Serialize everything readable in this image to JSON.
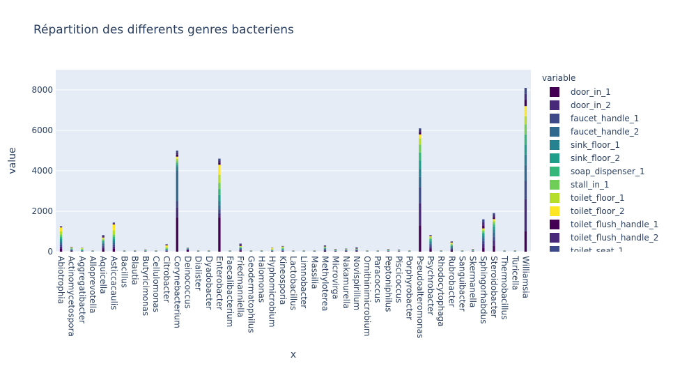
{
  "title": "Répartition des differents genres bacteriens",
  "legend_title": "variable",
  "chart_data": {
    "type": "bar",
    "barmode": "stack",
    "title": "Répartition des differents genres bacteriens",
    "xlabel": "x",
    "ylabel": "value",
    "ylim": [
      0,
      9000
    ],
    "yticks": [
      0,
      2000,
      4000,
      6000,
      8000
    ],
    "ytick_labels": [
      "0",
      "2000",
      "4000",
      "6000",
      "8000"
    ],
    "grid": true,
    "legend_position": "right",
    "x_tick_labels": [
      "Abiotrophia",
      "Actinomycetospora",
      "Aggregatibacter",
      "Alloprevotella",
      "Aquicella",
      "Asticcacaulis",
      "Bacillus",
      "Blautia",
      "Butyricimonas",
      "Cellulomonas",
      "Citrobacter",
      "Corynebacterium",
      "Deinococcus",
      "Dialister",
      "Dyadobacter",
      "Enterobacter",
      "Faecalibacterium",
      "Friedmanniella",
      "Geodermatophilus",
      "Halomonas",
      "Hyphomicrobium",
      "Kineosporia",
      "Lactobacillus",
      "Limnobacter",
      "Massilia",
      "Methyloterea",
      "Microvirga",
      "Nakamurella",
      "Novispirillum",
      "Ornithinimicrobium",
      "Paracoccus",
      "Peptoniphilus",
      "Piscicoccus",
      "Porphyrobacter",
      "Pseudoalteromonas",
      "Psychrobacter",
      "Rhodocytophaga",
      "Rubrobacter",
      "Sanguibacter",
      "Skermanella",
      "Sphingorhabdus",
      "Steroidobacter",
      "Thermobacillus",
      "Turicella",
      "Williamsia"
    ],
    "categories": [
      "Abiotrophia",
      "Actinomycetospora",
      "Aggregatibacter",
      "Alloprevotella",
      "Aquicella",
      "Asticcacaulis",
      "Bacillus",
      "Blautia",
      "Butyricimonas",
      "Cellulomonas",
      "Citrobacter",
      "Corynebacterium",
      "Deinococcus",
      "Dialister",
      "Dyadobacter",
      "Enterobacter",
      "Faecalibacterium",
      "Friedmanniella",
      "Geodermatophilus",
      "Halomonas",
      "Hyphomicrobium",
      "Kineosporia",
      "Lactobacillus",
      "Limnobacter",
      "Massilia",
      "Methyloterea",
      "Microvirga",
      "Nakamurella",
      "Novispirillum",
      "Ornithinimicrobium",
      "Paracoccus",
      "Peptoniphilus",
      "Piscicoccus",
      "Porphyrobacter",
      "Pseudoalteromonas",
      "Psychrobacter",
      "Rhodocytophaga",
      "Rubrobacter",
      "Sanguibacter",
      "Skermanella",
      "Sphingorhabdus",
      "Steroidobacter",
      "Thermobacillus",
      "Turicella",
      "Williamsia"
    ],
    "legend": [
      {
        "name": "door_in_1",
        "color": "#440154"
      },
      {
        "name": "door_in_2",
        "color": "#482878"
      },
      {
        "name": "faucet_handle_1",
        "color": "#3e4989"
      },
      {
        "name": "faucet_handle_2",
        "color": "#31688e"
      },
      {
        "name": "sink_floor_1",
        "color": "#26828e"
      },
      {
        "name": "sink_floor_2",
        "color": "#1f9e89"
      },
      {
        "name": "soap_dispenser_1",
        "color": "#35b779"
      },
      {
        "name": "stall_in_1",
        "color": "#6ece58"
      },
      {
        "name": "toilet_floor_1",
        "color": "#b5de2b"
      },
      {
        "name": "toilet_floor_2",
        "color": "#fde725"
      },
      {
        "name": "toilet_flush_handle_1",
        "color": "#440154"
      },
      {
        "name": "toilet_flush_handle_2",
        "color": "#482878"
      },
      {
        "name": "toilet_seat_1",
        "color": "#3e4989"
      }
    ],
    "series": [
      {
        "name": "door_in_1",
        "color": "#440154",
        "values": [
          150,
          30,
          10,
          5,
          120,
          150,
          5,
          10,
          10,
          5,
          20,
          1700,
          80,
          5,
          5,
          1700,
          5,
          50,
          5,
          5,
          15,
          20,
          5,
          5,
          10,
          40,
          15,
          20,
          30,
          5,
          5,
          10,
          10,
          5,
          1300,
          120,
          5,
          50,
          5,
          10,
          200,
          300,
          5,
          5,
          1000
        ]
      },
      {
        "name": "door_in_2",
        "color": "#482878",
        "values": [
          100,
          20,
          10,
          5,
          100,
          100,
          5,
          5,
          10,
          5,
          20,
          500,
          30,
          5,
          5,
          200,
          5,
          40,
          5,
          5,
          10,
          20,
          5,
          5,
          5,
          30,
          10,
          15,
          20,
          5,
          5,
          10,
          10,
          5,
          1100,
          100,
          5,
          50,
          5,
          10,
          180,
          250,
          5,
          5,
          1600
        ]
      },
      {
        "name": "faucet_handle_1",
        "color": "#3e4989",
        "values": [
          100,
          20,
          10,
          5,
          80,
          100,
          5,
          5,
          10,
          5,
          20,
          300,
          20,
          5,
          5,
          200,
          5,
          30,
          5,
          5,
          10,
          20,
          5,
          5,
          5,
          30,
          10,
          15,
          20,
          5,
          5,
          10,
          10,
          5,
          800,
          100,
          5,
          50,
          5,
          10,
          150,
          200,
          5,
          5,
          900
        ]
      },
      {
        "name": "faucet_handle_2",
        "color": "#31688e",
        "values": [
          100,
          20,
          10,
          5,
          80,
          100,
          5,
          5,
          10,
          5,
          20,
          1500,
          20,
          5,
          5,
          200,
          5,
          30,
          5,
          5,
          10,
          20,
          5,
          5,
          5,
          30,
          10,
          15,
          20,
          5,
          5,
          10,
          10,
          5,
          500,
          80,
          5,
          50,
          5,
          10,
          150,
          200,
          5,
          5,
          800
        ]
      },
      {
        "name": "sink_floor_1",
        "color": "#26828e",
        "values": [
          100,
          20,
          10,
          5,
          60,
          100,
          5,
          5,
          10,
          5,
          20,
          200,
          10,
          5,
          5,
          200,
          5,
          30,
          5,
          5,
          10,
          20,
          5,
          5,
          5,
          20,
          10,
          10,
          10,
          5,
          5,
          10,
          5,
          5,
          400,
          80,
          5,
          40,
          5,
          10,
          100,
          150,
          5,
          5,
          500
        ]
      },
      {
        "name": "sink_floor_2",
        "color": "#1f9e89",
        "values": [
          100,
          20,
          20,
          5,
          60,
          100,
          5,
          5,
          10,
          5,
          20,
          100,
          5,
          5,
          5,
          300,
          5,
          20,
          5,
          5,
          10,
          30,
          5,
          5,
          5,
          20,
          10,
          10,
          10,
          5,
          5,
          10,
          5,
          5,
          400,
          80,
          5,
          40,
          5,
          10,
          100,
          150,
          5,
          5,
          500
        ]
      },
      {
        "name": "soap_dispenser_1",
        "color": "#35b779",
        "values": [
          100,
          20,
          30,
          5,
          50,
          100,
          5,
          5,
          10,
          5,
          20,
          100,
          5,
          5,
          5,
          300,
          5,
          20,
          5,
          5,
          10,
          30,
          5,
          5,
          5,
          20,
          10,
          10,
          10,
          5,
          5,
          10,
          5,
          5,
          400,
          60,
          5,
          40,
          5,
          10,
          80,
          100,
          5,
          5,
          500
        ]
      },
      {
        "name": "stall_in_1",
        "color": "#6ece58",
        "values": [
          100,
          20,
          30,
          5,
          50,
          100,
          5,
          5,
          10,
          5,
          30,
          100,
          5,
          5,
          5,
          300,
          5,
          20,
          5,
          5,
          20,
          30,
          5,
          5,
          5,
          20,
          10,
          10,
          10,
          5,
          5,
          10,
          5,
          5,
          400,
          60,
          5,
          40,
          5,
          10,
          80,
          100,
          5,
          5,
          500
        ]
      },
      {
        "name": "toilet_floor_1",
        "color": "#b5de2b",
        "values": [
          150,
          20,
          30,
          5,
          50,
          200,
          5,
          5,
          10,
          5,
          60,
          100,
          5,
          5,
          5,
          400,
          5,
          20,
          5,
          5,
          40,
          30,
          5,
          5,
          5,
          20,
          10,
          10,
          10,
          5,
          5,
          10,
          5,
          5,
          300,
          50,
          5,
          40,
          5,
          10,
          60,
          80,
          5,
          5,
          400
        ]
      },
      {
        "name": "toilet_floor_2",
        "color": "#fde725",
        "values": [
          200,
          20,
          20,
          5,
          50,
          300,
          5,
          5,
          10,
          5,
          80,
          100,
          5,
          5,
          5,
          500,
          5,
          20,
          5,
          5,
          60,
          30,
          5,
          5,
          5,
          20,
          10,
          10,
          10,
          5,
          5,
          10,
          5,
          5,
          200,
          30,
          5,
          50,
          5,
          10,
          50,
          80,
          5,
          5,
          500
        ]
      },
      {
        "name": "toilet_flush_handle_1",
        "color": "#440154",
        "values": [
          20,
          10,
          5,
          5,
          40,
          30,
          5,
          5,
          5,
          5,
          20,
          100,
          5,
          5,
          5,
          100,
          5,
          40,
          5,
          5,
          5,
          10,
          5,
          5,
          5,
          20,
          10,
          10,
          20,
          5,
          5,
          10,
          10,
          5,
          100,
          20,
          5,
          20,
          5,
          10,
          150,
          100,
          5,
          5,
          300
        ]
      },
      {
        "name": "toilet_flush_handle_2",
        "color": "#482878",
        "values": [
          20,
          10,
          5,
          5,
          40,
          30,
          5,
          5,
          5,
          5,
          20,
          100,
          5,
          5,
          5,
          100,
          5,
          40,
          5,
          5,
          5,
          10,
          5,
          5,
          5,
          20,
          10,
          10,
          20,
          5,
          5,
          10,
          10,
          5,
          100,
          20,
          5,
          20,
          5,
          10,
          150,
          100,
          5,
          5,
          300
        ]
      },
      {
        "name": "toilet_seat_1",
        "color": "#3e4989",
        "values": [
          20,
          10,
          5,
          5,
          40,
          30,
          5,
          5,
          5,
          5,
          20,
          100,
          5,
          5,
          5,
          100,
          5,
          40,
          5,
          5,
          5,
          10,
          5,
          5,
          5,
          20,
          10,
          10,
          20,
          5,
          5,
          10,
          10,
          5,
          100,
          20,
          5,
          20,
          5,
          10,
          150,
          100,
          5,
          5,
          300
        ]
      }
    ]
  }
}
